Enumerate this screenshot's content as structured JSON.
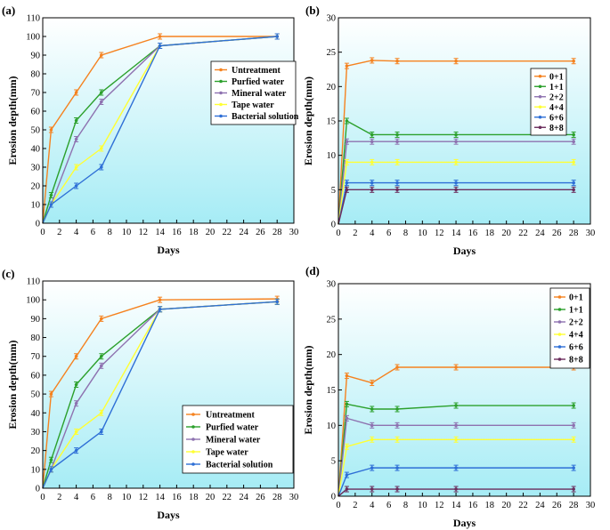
{
  "chart_data": [
    {
      "type": "line",
      "panel_label": "(a)",
      "xlabel": "Days",
      "ylabel": "Erosion depth(mm)",
      "xlim": [
        0,
        30
      ],
      "ylim": [
        0,
        110
      ],
      "xticks": [
        "0",
        "2",
        "4",
        "6",
        "8",
        "10",
        "12",
        "14",
        "16",
        "18",
        "20",
        "22",
        "24",
        "26",
        "28",
        "30"
      ],
      "yticks": [
        "0",
        "10",
        "20",
        "30",
        "40",
        "50",
        "60",
        "70",
        "80",
        "90",
        "100",
        "110"
      ],
      "x": [
        0,
        1,
        4,
        7,
        14,
        28
      ],
      "legend_position": "right-center",
      "series": [
        {
          "name": "Untreatment",
          "color": "#f5821f",
          "values": [
            0,
            50,
            70,
            90,
            100,
            100
          ]
        },
        {
          "name": "Purfied water",
          "color": "#2ca02c",
          "values": [
            0,
            15,
            55,
            70,
            95,
            100
          ]
        },
        {
          "name": "Mineral water",
          "color": "#8e72b0",
          "values": [
            0,
            10,
            45,
            65,
            95,
            100
          ]
        },
        {
          "name": "Tape water",
          "color": "#ffff33",
          "values": [
            0,
            10,
            30,
            40,
            95,
            100
          ]
        },
        {
          "name": "Bacterial solution",
          "color": "#2e6fd6",
          "values": [
            0,
            10,
            20,
            30,
            95,
            100
          ]
        }
      ]
    },
    {
      "type": "line",
      "panel_label": "(b)",
      "xlabel": "Days",
      "ylabel": "Erosion depth(mm)",
      "xlim": [
        0,
        30
      ],
      "ylim": [
        0,
        30
      ],
      "xticks": [
        "0",
        "2",
        "4",
        "6",
        "8",
        "10",
        "12",
        "14",
        "16",
        "18",
        "20",
        "22",
        "24",
        "26",
        "28",
        "30"
      ],
      "yticks": [
        "0",
        "5",
        "10",
        "15",
        "20",
        "25",
        "30"
      ],
      "x": [
        0,
        1,
        4,
        7,
        14,
        28
      ],
      "legend_position": "top-right",
      "series": [
        {
          "name": "0+1",
          "color": "#f5821f",
          "values": [
            0,
            23,
            23.8,
            23.7,
            23.7,
            23.7
          ]
        },
        {
          "name": "1+1",
          "color": "#2ca02c",
          "values": [
            0,
            15,
            13,
            13,
            13,
            13
          ]
        },
        {
          "name": "2+2",
          "color": "#8e72b0",
          "values": [
            0,
            12,
            12,
            12,
            12,
            12
          ]
        },
        {
          "name": "4+4",
          "color": "#ffff33",
          "values": [
            0,
            9,
            9,
            9,
            9,
            9
          ]
        },
        {
          "name": "6+6",
          "color": "#2e6fd6",
          "values": [
            0,
            6,
            6,
            6,
            6,
            6
          ]
        },
        {
          "name": "8+8",
          "color": "#6b2c5c",
          "values": [
            0,
            5,
            5,
            5,
            5,
            5
          ]
        }
      ]
    },
    {
      "type": "line",
      "panel_label": "(c)",
      "xlabel": "Days",
      "ylabel": "Erosion depth(mm)",
      "xlim": [
        0,
        30
      ],
      "ylim": [
        0,
        110
      ],
      "xticks": [
        "0",
        "2",
        "4",
        "6",
        "8",
        "10",
        "12",
        "14",
        "16",
        "18",
        "20",
        "22",
        "24",
        "26",
        "28",
        "30"
      ],
      "yticks": [
        "0",
        "10",
        "20",
        "30",
        "40",
        "50",
        "60",
        "70",
        "80",
        "90",
        "100",
        "110"
      ],
      "x": [
        0,
        1,
        4,
        7,
        14,
        28
      ],
      "legend_position": "bottom-right",
      "series": [
        {
          "name": "Untreatment",
          "color": "#f5821f",
          "values": [
            0,
            50,
            70,
            90,
            100,
            100.5
          ]
        },
        {
          "name": "Purfied water",
          "color": "#2ca02c",
          "values": [
            0,
            15,
            55,
            70,
            95,
            99
          ]
        },
        {
          "name": "Mineral water",
          "color": "#8e72b0",
          "values": [
            0,
            10,
            45,
            65,
            95,
            99
          ]
        },
        {
          "name": "Tape water",
          "color": "#ffff33",
          "values": [
            0,
            10,
            30,
            40,
            95,
            99
          ]
        },
        {
          "name": "Bacterial solution",
          "color": "#2e6fd6",
          "values": [
            0,
            10,
            20,
            30,
            95,
            99
          ]
        }
      ]
    },
    {
      "type": "line",
      "panel_label": "(d)",
      "xlabel": "Days",
      "ylabel": "Erosion depth(mm)",
      "xlim": [
        0,
        30
      ],
      "ylim": [
        0,
        30
      ],
      "xticks": [
        "0",
        "2",
        "4",
        "6",
        "8",
        "10",
        "12",
        "14",
        "16",
        "18",
        "20",
        "22",
        "24",
        "26",
        "28",
        "30"
      ],
      "yticks": [
        "0",
        "5",
        "10",
        "15",
        "20",
        "25",
        "30"
      ],
      "x": [
        0,
        1,
        4,
        7,
        14,
        28
      ],
      "legend_position": "top-right",
      "series": [
        {
          "name": "0+1",
          "color": "#f5821f",
          "values": [
            0,
            17,
            16,
            18.2,
            18.2,
            18.2
          ]
        },
        {
          "name": "1+1",
          "color": "#2ca02c",
          "values": [
            0,
            13,
            12.3,
            12.3,
            12.8,
            12.8
          ]
        },
        {
          "name": "2+2",
          "color": "#8e72b0",
          "values": [
            0,
            11,
            10,
            10,
            10,
            10
          ]
        },
        {
          "name": "4+4",
          "color": "#ffff33",
          "values": [
            0,
            7,
            8,
            8,
            8,
            8
          ]
        },
        {
          "name": "6+6",
          "color": "#2e6fd6",
          "values": [
            0,
            3,
            4,
            4,
            4,
            4
          ]
        },
        {
          "name": "8+8",
          "color": "#6b2c5c",
          "values": [
            0,
            1,
            1,
            1,
            1,
            1
          ]
        }
      ]
    }
  ]
}
